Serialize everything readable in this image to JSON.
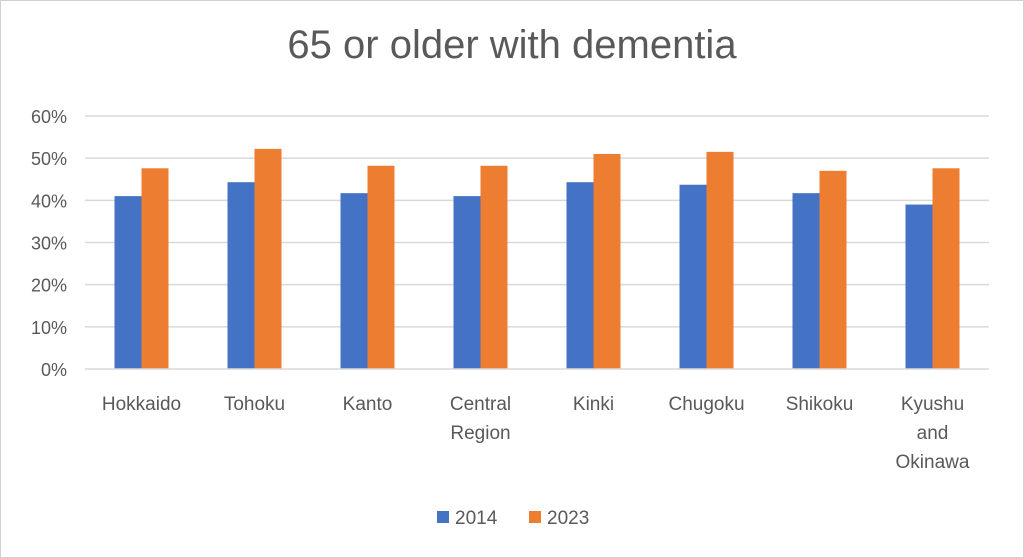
{
  "chart_data": {
    "type": "bar",
    "title": "65 or older with dementia",
    "xlabel": "",
    "ylabel": "",
    "categories": [
      "Hokkaido",
      "Tohoku",
      "Kanto",
      "Central Region",
      "Kinki",
      "Chugoku",
      "Shikoku",
      "Kyushu and Okinawa"
    ],
    "category_lines": [
      [
        "Hokkaido"
      ],
      [
        "Tohoku"
      ],
      [
        "Kanto"
      ],
      [
        "Central",
        "Region"
      ],
      [
        "Kinki"
      ],
      [
        "Chugoku"
      ],
      [
        "Shikoku"
      ],
      [
        "Kyushu",
        "and",
        "Okinawa"
      ]
    ],
    "series": [
      {
        "name": "2014",
        "color": "#4472C4",
        "values": [
          41,
          44.3,
          41.7,
          41,
          44.3,
          43.7,
          41.7,
          39
        ]
      },
      {
        "name": "2023",
        "color": "#ED7D31",
        "values": [
          47.6,
          52.2,
          48.2,
          48.2,
          51,
          51.5,
          47,
          47.6
        ]
      }
    ],
    "ylim": [
      0,
      60
    ],
    "yticks": [
      0,
      10,
      20,
      30,
      40,
      50,
      60
    ],
    "ytick_labels": [
      "0%",
      "10%",
      "20%",
      "30%",
      "40%",
      "50%",
      "60%"
    ],
    "grid": true,
    "legend_position": "bottom"
  }
}
